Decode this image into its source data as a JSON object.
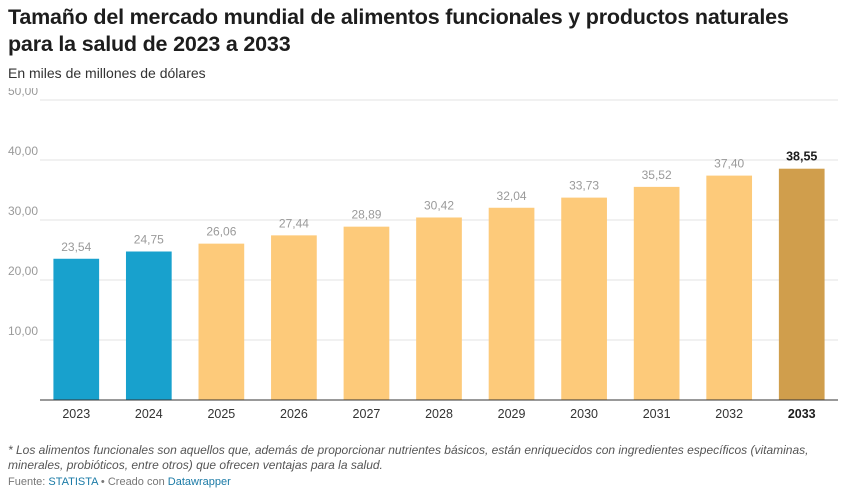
{
  "header": {
    "title": "Tamaño del mercado mundial de alimentos funcionales y productos naturales para la salud de 2023 a 2033",
    "subtitle": "En miles de millones de dólares"
  },
  "chart_data": {
    "type": "bar",
    "categories": [
      "2023",
      "2024",
      "2025",
      "2026",
      "2027",
      "2028",
      "2029",
      "2030",
      "2031",
      "2032",
      "2033"
    ],
    "values": [
      23.54,
      24.75,
      26.06,
      27.44,
      28.89,
      30.42,
      32.04,
      33.73,
      35.52,
      37.4,
      38.55
    ],
    "value_labels": [
      "23,54",
      "24,75",
      "26,06",
      "27,44",
      "28,89",
      "30,42",
      "32,04",
      "33,73",
      "35,52",
      "37,40",
      "38,55"
    ],
    "bar_colors": [
      "#18a1cd",
      "#18a1cd",
      "#fdca7a",
      "#fdca7a",
      "#fdca7a",
      "#fdca7a",
      "#fdca7a",
      "#fdca7a",
      "#fdca7a",
      "#fdca7a",
      "#d09e4c"
    ],
    "highlight_index": 10,
    "ylim": [
      0,
      50
    ],
    "yticks": [
      10,
      20,
      30,
      40,
      50
    ],
    "ytick_labels": [
      "10,00",
      "20,00",
      "30,00",
      "40,00",
      "50,00"
    ],
    "grid": true,
    "xlabel": "",
    "ylabel": ""
  },
  "footer": {
    "note": "* Los alimentos funcionales son aquellos que, además de proporcionar nutrientes básicos, están enriquecidos con ingredientes específicos (vitaminas, minerales, probióticos, entre otros) que ofrecen ventajas para la salud.",
    "source_prefix": "Fuente: ",
    "source_name": "STATISTA",
    "created_with": " • Creado con ",
    "tool_name": "Datawrapper"
  }
}
